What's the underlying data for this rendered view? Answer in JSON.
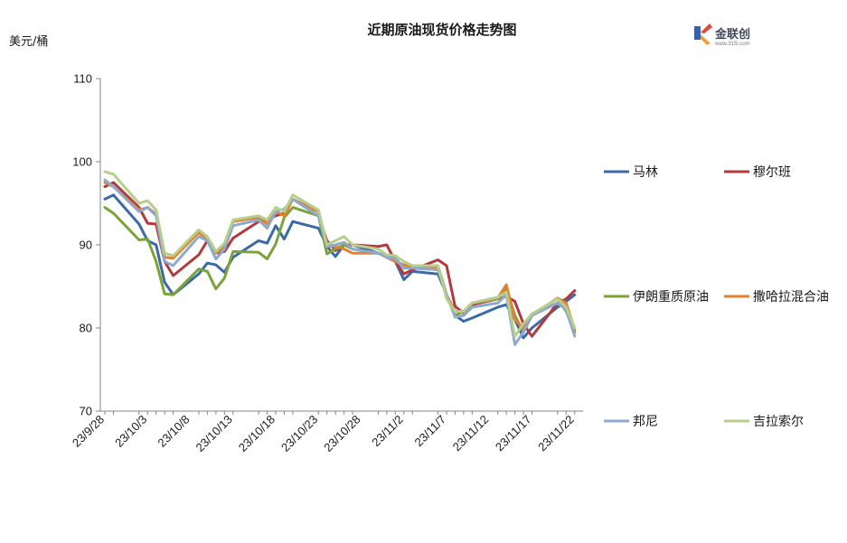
{
  "logo": {
    "name": "金联创",
    "sub": "www.315i.com"
  },
  "chart_data": {
    "type": "line",
    "title": "近期原油现货价格走势图",
    "ylabel": "美元/桶",
    "xlabel": "",
    "ylim": [
      70,
      110
    ],
    "yticks": [
      70,
      80,
      90,
      100,
      110
    ],
    "grid": false,
    "legend_position": "right",
    "x": [
      "23/9/28",
      "23/9/29",
      "23/10/2",
      "23/10/3",
      "23/10/4",
      "23/10/5",
      "23/10/6",
      "23/10/9",
      "23/10/10",
      "23/10/11",
      "23/10/12",
      "23/10/13",
      "23/10/16",
      "23/10/17",
      "23/10/18",
      "23/10/19",
      "23/10/20",
      "23/10/23",
      "23/10/24",
      "23/10/25",
      "23/10/26",
      "23/10/27",
      "23/10/30",
      "23/10/31",
      "23/11/1",
      "23/11/2",
      "23/11/3",
      "23/11/6",
      "23/11/7",
      "23/11/8",
      "23/11/9",
      "23/11/10",
      "23/11/13",
      "23/11/14",
      "23/11/15",
      "23/11/16",
      "23/11/17",
      "23/11/20",
      "23/11/21",
      "23/11/22"
    ],
    "xtick_labels": [
      "23/9/28",
      "23/10/3",
      "23/10/8",
      "23/10/13",
      "23/10/18",
      "23/10/23",
      "23/10/28",
      "23/11/2",
      "23/11/7",
      "23/11/12",
      "23/11/17",
      "23/11/22"
    ],
    "series": [
      {
        "name": "马林",
        "color": "#3c6aa5",
        "x": [
          "23/9/28",
          "23/9/29",
          "23/10/2",
          "23/10/3",
          "23/10/4",
          "23/10/5",
          "23/10/6",
          "23/10/9",
          "23/10/10",
          "23/10/11",
          "23/10/12",
          "23/10/13",
          "23/10/16",
          "23/10/17",
          "23/10/18",
          "23/10/19",
          "23/10/20",
          "23/10/23",
          "23/10/24",
          "23/10/25",
          "23/10/26",
          "23/10/27",
          "23/10/30",
          "23/10/31",
          "23/11/1",
          "23/11/2",
          "23/11/3",
          "23/11/6",
          "23/11/7",
          "23/11/8",
          "23/11/9",
          "23/11/10",
          "23/11/13",
          "23/11/14",
          "23/11/15",
          "23/11/16",
          "23/11/17",
          "23/11/20",
          "23/11/21",
          "23/11/22"
        ],
        "values": [
          95.5,
          96.0,
          92.5,
          90.5,
          90.0,
          85.5,
          84.0,
          86.5,
          87.8,
          87.6,
          86.7,
          88.5,
          90.5,
          90.2,
          92.3,
          90.7,
          92.8,
          92.0,
          89.8,
          88.6,
          90.0,
          90.0,
          89.0,
          88.5,
          88.0,
          85.8,
          86.8,
          86.5,
          84.0,
          81.5,
          80.8,
          81.2,
          82.5,
          82.8,
          81.0,
          78.8,
          80.0,
          82.5,
          83.2,
          84.0
        ]
      },
      {
        "name": "穆尔班",
        "color": "#b3393c",
        "x": [
          "23/9/28",
          "23/9/29",
          "23/10/2",
          "23/10/3",
          "23/10/4",
          "23/10/5",
          "23/10/6",
          "23/10/9",
          "23/10/10",
          "23/10/11",
          "23/10/12",
          "23/10/13",
          "23/10/16",
          "23/10/17",
          "23/10/18",
          "23/10/19",
          "23/10/20",
          "23/10/23",
          "23/10/24",
          "23/10/25",
          "23/10/26",
          "23/10/27",
          "23/10/30",
          "23/10/31",
          "23/11/1",
          "23/11/2",
          "23/11/3",
          "23/11/6",
          "23/11/7",
          "23/11/8",
          "23/11/9",
          "23/11/10",
          "23/11/13",
          "23/11/14",
          "23/11/15",
          "23/11/16",
          "23/11/17",
          "23/11/20",
          "23/11/21",
          "23/11/22"
        ],
        "values": [
          97.0,
          97.5,
          94.5,
          92.6,
          92.5,
          88.0,
          86.3,
          88.8,
          90.5,
          89.0,
          89.2,
          90.8,
          92.8,
          93.0,
          93.5,
          93.8,
          95.5,
          93.5,
          90.5,
          89.3,
          90.0,
          90.0,
          89.8,
          90.0,
          88.0,
          86.5,
          87.0,
          88.2,
          87.5,
          82.6,
          81.8,
          82.8,
          83.5,
          83.8,
          83.2,
          80.5,
          79.0,
          83.0,
          83.5,
          84.5
        ]
      },
      {
        "name": "伊朗重质原油",
        "color": "#7aa33a",
        "x": [
          "23/9/28",
          "23/9/29",
          "23/10/2",
          "23/10/3",
          "23/10/4",
          "23/10/5",
          "23/10/6",
          "23/10/9",
          "23/10/10",
          "23/10/11",
          "23/10/12",
          "23/10/13",
          "23/10/16",
          "23/10/17",
          "23/10/18",
          "23/10/19",
          "23/10/20",
          "23/10/23",
          "23/10/24",
          "23/10/25",
          "23/10/26",
          "23/10/27",
          "23/10/30",
          "23/10/31",
          "23/11/1",
          "23/11/2",
          "23/11/3",
          "23/11/6",
          "23/11/7",
          "23/11/8",
          "23/11/9",
          "23/11/10",
          "23/11/13",
          "23/11/14",
          "23/11/15",
          "23/11/16",
          "23/11/17",
          "23/11/20",
          "23/11/21",
          "23/11/22"
        ],
        "values": [
          94.5,
          93.8,
          90.6,
          90.7,
          88.0,
          84.1,
          84.0,
          87.1,
          86.8,
          84.7,
          86.0,
          89.2,
          89.1,
          88.3,
          90.1,
          93.3,
          94.5,
          93.5,
          88.9,
          89.5,
          90.0,
          89.5,
          89.0,
          88.6,
          88.4,
          87.2,
          87.5,
          87.5,
          84.0,
          81.5,
          82.0,
          83.0,
          83.5,
          84.8,
          81.5,
          79.5,
          81.5,
          83.5,
          82.0,
          79.5
        ]
      },
      {
        "name": "撒哈拉混合油",
        "color": "#e0822f",
        "x": [
          "23/9/28",
          "23/9/29",
          "23/10/2",
          "23/10/3",
          "23/10/4",
          "23/10/5",
          "23/10/6",
          "23/10/9",
          "23/10/10",
          "23/10/11",
          "23/10/12",
          "23/10/13",
          "23/10/16",
          "23/10/17",
          "23/10/18",
          "23/10/19",
          "23/10/20",
          "23/10/23",
          "23/10/24",
          "23/10/25",
          "23/10/26",
          "23/10/27",
          "23/10/30",
          "23/10/31",
          "23/11/1",
          "23/11/2",
          "23/11/3",
          "23/11/6",
          "23/11/7",
          "23/11/8",
          "23/11/9",
          "23/11/10",
          "23/11/13",
          "23/11/14",
          "23/11/15",
          "23/11/16",
          "23/11/17",
          "23/11/20",
          "23/11/21",
          "23/11/22"
        ],
        "values": [
          97.5,
          97.0,
          94.2,
          94.5,
          93.7,
          88.5,
          88.4,
          91.5,
          90.5,
          89.0,
          89.8,
          92.8,
          93.3,
          92.5,
          94.0,
          93.5,
          95.5,
          94.0,
          89.8,
          89.8,
          89.5,
          89.0,
          89.0,
          88.5,
          88.0,
          87.6,
          87.5,
          87.2,
          84.0,
          82.0,
          82.0,
          83.0,
          83.6,
          85.2,
          81.0,
          80.0,
          81.5,
          83.6,
          83.0,
          79.8
        ]
      },
      {
        "name": "邦尼",
        "color": "#8ea9cf",
        "x": [
          "23/9/28",
          "23/9/29",
          "23/10/2",
          "23/10/3",
          "23/10/4",
          "23/10/5",
          "23/10/6",
          "23/10/9",
          "23/10/10",
          "23/10/11",
          "23/10/12",
          "23/10/13",
          "23/10/16",
          "23/10/17",
          "23/10/18",
          "23/10/19",
          "23/10/20",
          "23/10/23",
          "23/10/24",
          "23/10/25",
          "23/10/26",
          "23/10/27",
          "23/10/30",
          "23/10/31",
          "23/11/1",
          "23/11/2",
          "23/11/3",
          "23/11/6",
          "23/11/7",
          "23/11/8",
          "23/11/9",
          "23/11/10",
          "23/11/13",
          "23/11/14",
          "23/11/15",
          "23/11/16",
          "23/11/17",
          "23/11/20",
          "23/11/21",
          "23/11/22"
        ],
        "values": [
          97.8,
          97.0,
          94.0,
          94.5,
          93.5,
          88.0,
          87.5,
          91.0,
          90.5,
          88.3,
          89.5,
          92.3,
          93.0,
          92.0,
          94.0,
          94.3,
          95.5,
          93.5,
          89.8,
          90.0,
          90.3,
          89.5,
          89.0,
          88.5,
          88.3,
          87.2,
          87.2,
          87.0,
          84.0,
          81.3,
          81.5,
          82.5,
          83.0,
          84.0,
          78.0,
          79.5,
          81.5,
          83.0,
          82.2,
          79.0
        ]
      },
      {
        "name": "吉拉索尔",
        "color": "#b7cf8c",
        "x": [
          "23/9/28",
          "23/9/29",
          "23/10/2",
          "23/10/3",
          "23/10/4",
          "23/10/5",
          "23/10/6",
          "23/10/9",
          "23/10/10",
          "23/10/11",
          "23/10/12",
          "23/10/13",
          "23/10/16",
          "23/10/17",
          "23/10/18",
          "23/10/19",
          "23/10/20",
          "23/10/23",
          "23/10/24",
          "23/10/25",
          "23/10/26",
          "23/10/27",
          "23/10/30",
          "23/10/31",
          "23/11/1",
          "23/11/2",
          "23/11/3",
          "23/11/6",
          "23/11/7",
          "23/11/8",
          "23/11/9",
          "23/11/10",
          "23/11/13",
          "23/11/14",
          "23/11/15",
          "23/11/16",
          "23/11/17",
          "23/11/20",
          "23/11/21",
          "23/11/22"
        ],
        "values": [
          98.8,
          98.5,
          95.0,
          95.3,
          94.2,
          89.0,
          88.7,
          91.8,
          91.0,
          89.2,
          90.2,
          93.0,
          93.5,
          93.0,
          94.5,
          94.0,
          96.0,
          94.2,
          90.0,
          90.5,
          91.0,
          90.0,
          89.5,
          88.8,
          88.7,
          88.0,
          87.5,
          87.5,
          83.5,
          82.0,
          82.0,
          83.0,
          83.7,
          84.3,
          79.0,
          80.5,
          81.7,
          83.5,
          82.5,
          80.0
        ]
      }
    ]
  }
}
